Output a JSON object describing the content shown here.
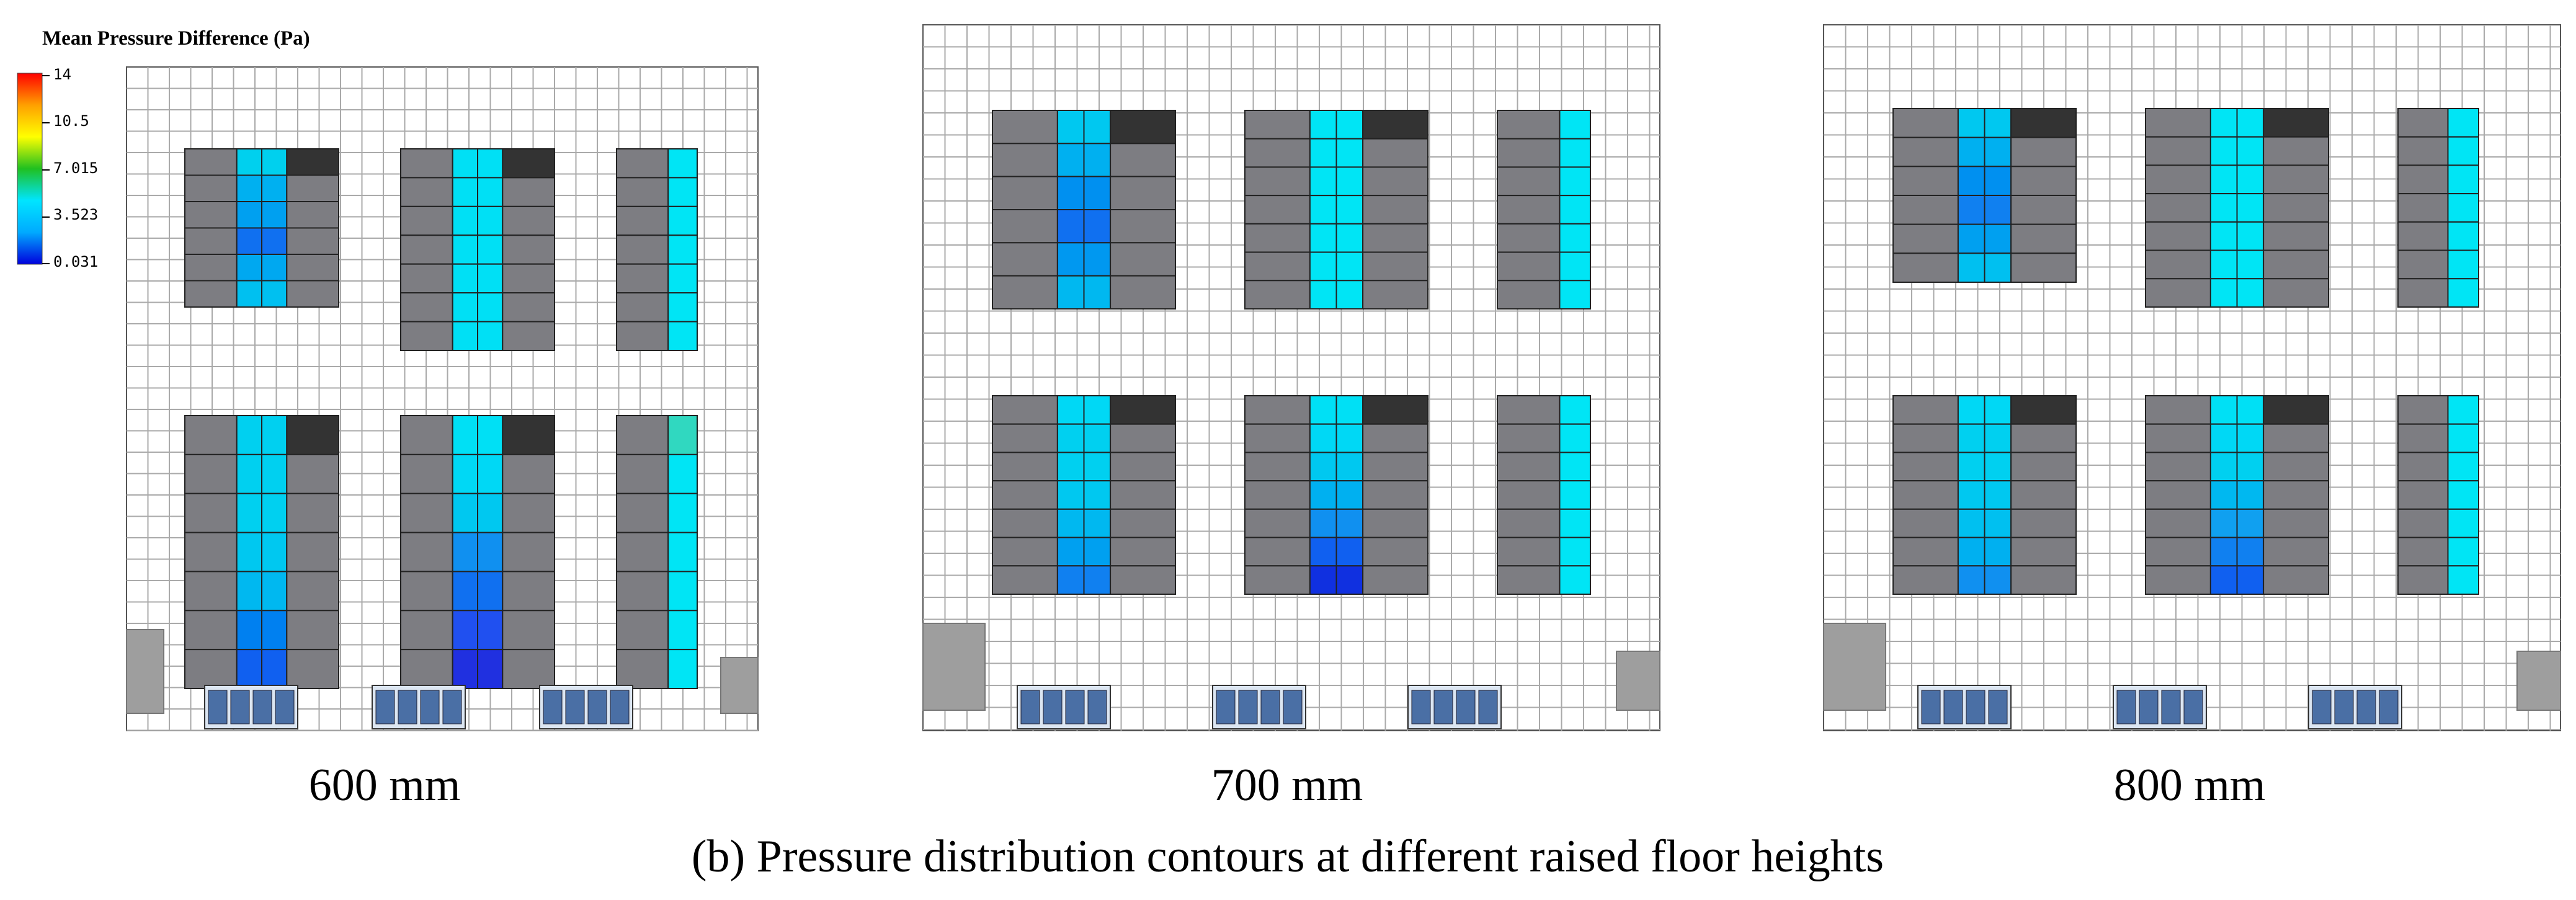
{
  "legend": {
    "title": "Mean Pressure Difference (Pa)",
    "ticks": [
      "14",
      "10.5",
      "7.015",
      "3.523",
      "0.031"
    ],
    "colors": [
      "#ff0000",
      "#ffa000",
      "#ffff00",
      "#20c020",
      "#00e5ff",
      "#00aaff",
      "#0000dd"
    ]
  },
  "colors": {
    "cabinet": "#7d7d82",
    "cabinet_dark": "#333333",
    "grid": "#aaaaaa",
    "outline": "#555555",
    "cooling_unit": "#9e9e9e"
  },
  "panels": [
    {
      "label": "600 mm",
      "hot_tiles": [
        [
          "#00d0ee",
          "#00b0f0",
          "#00a0f0",
          "#1070f0",
          "#00a8f0",
          "#00c0f0"
        ],
        [
          "#00e0f5",
          "#00e0f5",
          "#00e0f5",
          "#00e0f5",
          "#00e0f5",
          "#00e0f5",
          "#00e0f5"
        ],
        [
          "#00e5f5",
          "#00e5f5",
          "#00e5f5",
          "#00e5f5",
          "#00e5f5",
          "#00e5f5",
          "#00e5f5"
        ],
        [
          "#00d0f0",
          "#00d0f0",
          "#00d0f0",
          "#00c8f0",
          "#00b8f0",
          "#0080f0",
          "#1060f0"
        ],
        [
          "#00e0f5",
          "#00d8f5",
          "#00c8f0",
          "#1090f0",
          "#1070f0",
          "#2050f0",
          "#2030e0"
        ],
        [
          "#30d8c0",
          "#00e5f5",
          "#00e5f5",
          "#00e5f5",
          "#00e5f5",
          "#00e5f5",
          "#00e5f5"
        ]
      ]
    },
    {
      "label": "700 mm",
      "hot_tiles": [
        [
          "#00c8f0",
          "#00b0f0",
          "#0090f0",
          "#1070f0",
          "#0098f0",
          "#00b8f0"
        ],
        [
          "#00e5f5",
          "#00e5f5",
          "#00e5f5",
          "#00e5f5",
          "#00e5f5",
          "#00e5f5",
          "#00e5f5"
        ],
        [
          "#00e5f5",
          "#00e5f5",
          "#00e5f5",
          "#00e5f5",
          "#00e5f5",
          "#00e5f5",
          "#00e5f5"
        ],
        [
          "#00d8f5",
          "#00d0f0",
          "#00d0f0",
          "#00c8f0",
          "#00b8f0",
          "#00a0f0",
          "#1080f0"
        ],
        [
          "#00e0f5",
          "#00d8f5",
          "#00c8f0",
          "#00b0f0",
          "#1090f0",
          "#1060f0",
          "#1030e0"
        ],
        [
          "#00e5f5",
          "#00e5f5",
          "#00e5f5",
          "#00e5f5",
          "#00e5f5",
          "#00e5f5",
          "#00e5f5"
        ]
      ]
    },
    {
      "label": "800 mm",
      "hot_tiles": [
        [
          "#00c8f0",
          "#00b0f0",
          "#0090f0",
          "#1080f0",
          "#00a0f0",
          "#00c0f0"
        ],
        [
          "#00e5f5",
          "#00e5f5",
          "#00e5f5",
          "#00e5f5",
          "#00e5f5",
          "#00e5f5",
          "#00e5f5"
        ],
        [
          "#00e5f5",
          "#00e5f5",
          "#00e5f5",
          "#00e5f5",
          "#00e5f5",
          "#00e5f5",
          "#00e5f5"
        ],
        [
          "#00d8f5",
          "#00d0f0",
          "#00d0f0",
          "#00c8f0",
          "#00c0f0",
          "#00b0f0",
          "#1090f0"
        ],
        [
          "#00e0f5",
          "#00d8f5",
          "#00d0f0",
          "#00b8f0",
          "#10a0f0",
          "#1080f0",
          "#1060f0"
        ],
        [
          "#00e5f5",
          "#00e5f5",
          "#00e5f5",
          "#00e5f5",
          "#00e5f5",
          "#00e5f5",
          "#00e5f5"
        ]
      ]
    }
  ],
  "caption": "(b) Pressure distribution contours at different raised floor heights"
}
